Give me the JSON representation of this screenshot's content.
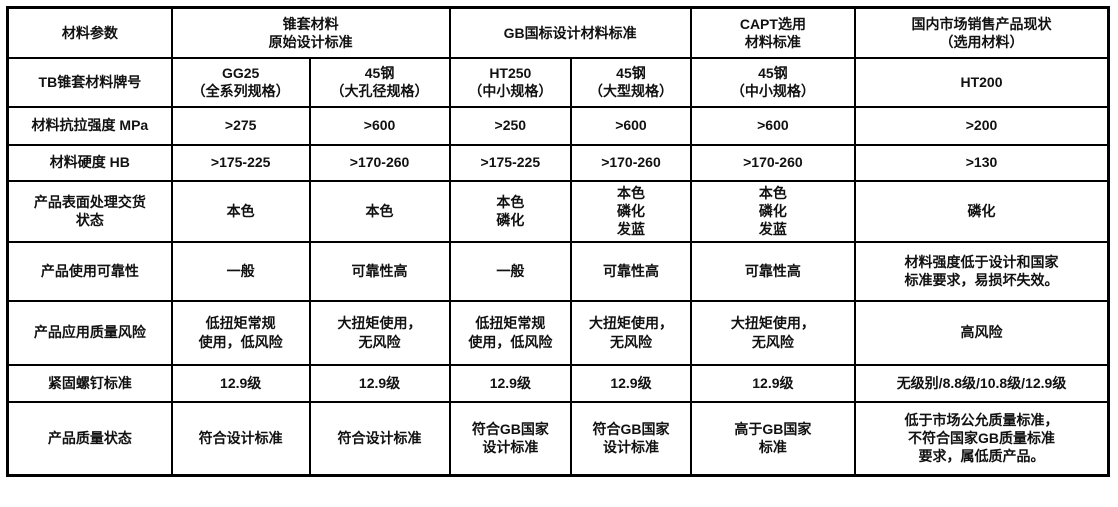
{
  "colors": {
    "red": "#e03227",
    "text": "#111111",
    "border": "#000000",
    "background": "#ffffff"
  },
  "table": {
    "header": {
      "param": "材料参数",
      "group_original": "锥套材料\n原始设计标准",
      "group_gb": "GB国标设计材料标准",
      "group_capt": "CAPT选用\n材料标准",
      "group_market": "国内市场销售产品现状\n（选用材料）"
    },
    "rows": [
      {
        "label": "TB锥套材料牌号",
        "cells": [
          "GG25\n（全系列规格）",
          "45钢\n（大孔径规格）",
          "HT250\n（中小规格）",
          "45钢\n（大型规格）",
          "45钢\n（中小规格）",
          "HT200"
        ]
      },
      {
        "label": "材料抗拉强度 MPa",
        "cells": [
          ">275",
          ">600",
          ">250",
          ">600",
          ">600",
          ">200"
        ]
      },
      {
        "label": "材料硬度 HB",
        "cells": [
          ">175-225",
          ">170-260",
          ">175-225",
          ">170-260",
          ">170-260",
          ">130"
        ]
      },
      {
        "label": "产品表面处理交货\n状态",
        "cells": [
          "本色",
          "本色",
          "本色\n磷化",
          "本色\n磷化\n发蓝",
          "本色\n磷化\n发蓝",
          "磷化"
        ]
      },
      {
        "label": "产品使用可靠性",
        "cells": [
          "一般",
          "可靠性高",
          "一般",
          "可靠性高",
          "可靠性高",
          "材料强度低于设计和国家\n标准要求，易损坏失效。"
        ]
      },
      {
        "label": "产品应用质量风险",
        "cells": [
          "低扭矩常规\n使用，低风险",
          "大扭矩使用，\n无风险",
          "低扭矩常规\n使用，低风险",
          "大扭矩使用，\n无风险",
          "大扭矩使用，\n无风险",
          "高风险"
        ]
      },
      {
        "label": "紧固螺钉标准",
        "cells": [
          "12.9级",
          "12.9级",
          "12.9级",
          "12.9级",
          "12.9级",
          "无级别/8.8级/10.8级/12.9级"
        ]
      },
      {
        "label": "产品质量状态",
        "cells": [
          "符合设计标准",
          "符合设计标准",
          "符合GB国家\n设计标准",
          "符合GB国家\n设计标准",
          "高于GB国家\n标准",
          "低于市场公允质量标准，\n不符合国家GB质量标准\n要求，属低质产品。"
        ]
      }
    ]
  }
}
